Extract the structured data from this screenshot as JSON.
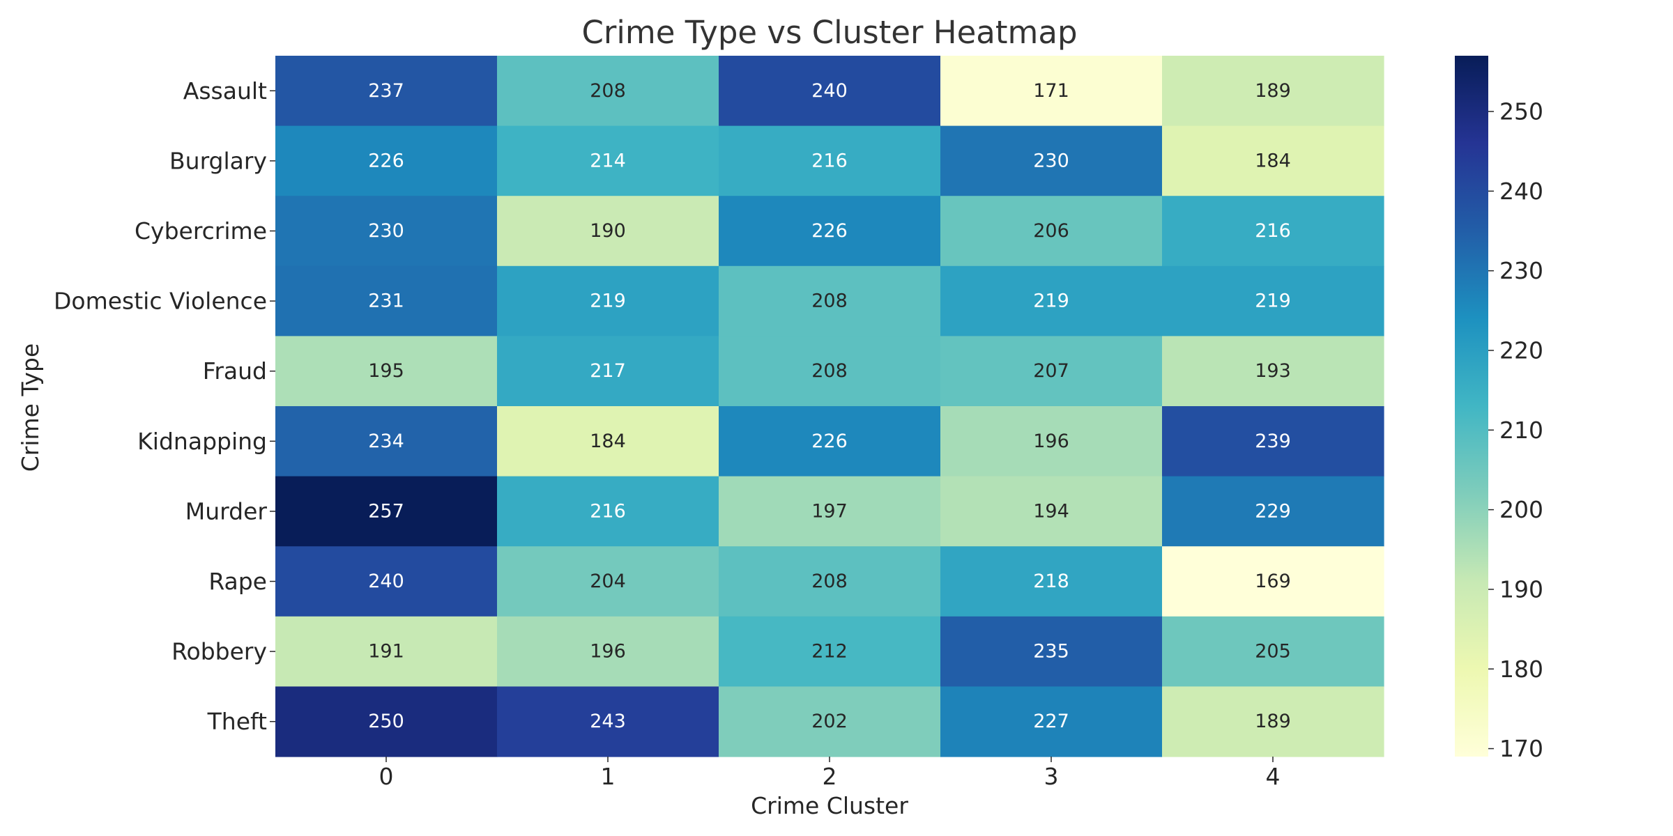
{
  "chart_data": {
    "type": "heatmap",
    "title": "Crime Type vs Cluster Heatmap",
    "xlabel": "Crime Cluster",
    "ylabel": "Crime Type",
    "x_categories": [
      "0",
      "1",
      "2",
      "3",
      "4"
    ],
    "y_categories": [
      "Assault",
      "Burglary",
      "Cybercrime",
      "Domestic Violence",
      "Fraud",
      "Kidnapping",
      "Murder",
      "Rape",
      "Robbery",
      "Theft"
    ],
    "values": [
      [
        237,
        208,
        240,
        171,
        189
      ],
      [
        226,
        214,
        216,
        230,
        184
      ],
      [
        230,
        190,
        226,
        206,
        216
      ],
      [
        231,
        219,
        208,
        219,
        219
      ],
      [
        195,
        217,
        208,
        207,
        193
      ],
      [
        234,
        184,
        226,
        196,
        239
      ],
      [
        257,
        216,
        197,
        194,
        229
      ],
      [
        240,
        204,
        208,
        218,
        169
      ],
      [
        191,
        196,
        212,
        235,
        205
      ],
      [
        250,
        243,
        202,
        227,
        189
      ]
    ],
    "colorscale": "YlGnBu",
    "color_range": [
      169,
      257
    ],
    "colorbar_ticks": [
      "170",
      "180",
      "190",
      "200",
      "210",
      "220",
      "230",
      "240",
      "250"
    ],
    "grid": false,
    "legend": "colorbar-right"
  }
}
